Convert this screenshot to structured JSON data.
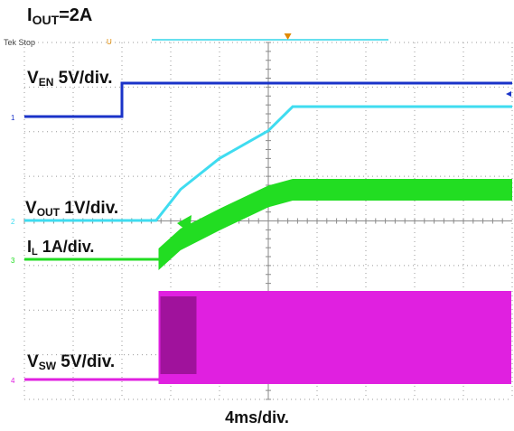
{
  "header": {
    "main": "I",
    "sub": "OUT",
    "tail": "=2A"
  },
  "scope_status": "Tek Stop",
  "timebase": "4ms/div.",
  "chart_data": {
    "type": "line",
    "title": "",
    "xlabel": "4ms/div.",
    "x_divisions": 10,
    "y_divisions": 8,
    "grid": true,
    "trigger_position_div": 5.4,
    "series": [
      {
        "name": "V_EN 5V/div.",
        "color": "#1a33c8",
        "label": {
          "main": "V",
          "sub": "EN",
          "tail": " 5V/div."
        },
        "ch_marker": "1",
        "t": [
          0,
          2.0,
          2.0,
          10
        ],
        "v": [
          0,
          0,
          5,
          5
        ]
      },
      {
        "name": "V_OUT 1V/div.",
        "color": "#3fdcf0",
        "label": {
          "main": "V",
          "sub": "OUT",
          "tail": "  1V/div."
        },
        "ch_marker": "2",
        "t": [
          0,
          2.7,
          3.2,
          4.0,
          5.0,
          5.5,
          10
        ],
        "v": [
          0,
          0,
          0.9,
          1.8,
          2.6,
          3.3,
          3.3
        ]
      },
      {
        "name": "I_L 1A/div.",
        "color": "#22dd22",
        "label": {
          "main": "I",
          "sub": "L",
          "tail": " 1A/div."
        },
        "ch_marker": "3",
        "t": [
          0,
          2.75,
          3.2,
          4.0,
          5.0,
          5.5,
          10
        ],
        "v": [
          0,
          0,
          0.6,
          1.2,
          1.9,
          2.1,
          2.1
        ]
      },
      {
        "name": "V_SW 5V/div.",
        "color": "#e020e0",
        "label": {
          "main": "V",
          "sub": "SW",
          "tail": " 5V/div."
        },
        "ch_marker": "4",
        "t": [
          0,
          2.75,
          10
        ],
        "v": [
          0,
          5,
          5
        ]
      }
    ]
  }
}
